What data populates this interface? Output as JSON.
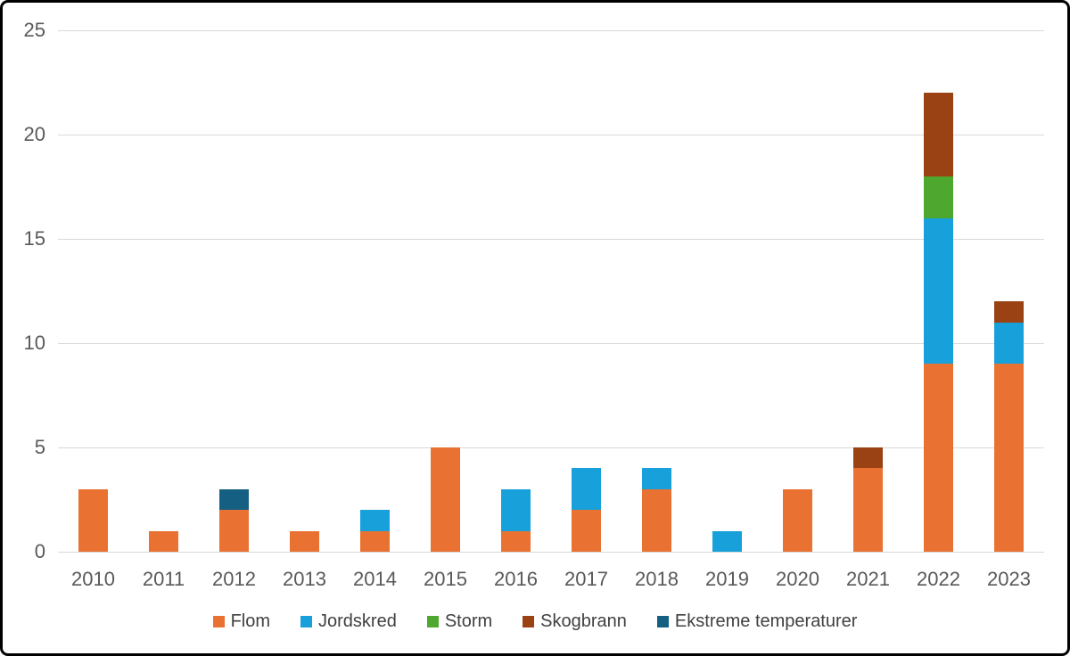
{
  "chart_data": {
    "type": "bar",
    "stacked": true,
    "title": "",
    "xlabel": "",
    "ylabel": "",
    "categories": [
      "2010",
      "2011",
      "2012",
      "2013",
      "2014",
      "2015",
      "2016",
      "2017",
      "2018",
      "2019",
      "2020",
      "2021",
      "2022",
      "2023"
    ],
    "series": [
      {
        "name": "Flom",
        "color": "#E97132",
        "values": [
          3,
          1,
          2,
          1,
          1,
          5,
          1,
          2,
          3,
          0,
          3,
          4,
          9,
          9
        ]
      },
      {
        "name": "Jordskred",
        "color": "#18A0DB",
        "values": [
          0,
          0,
          0,
          0,
          1,
          0,
          2,
          2,
          1,
          1,
          0,
          0,
          7,
          2
        ]
      },
      {
        "name": "Storm",
        "color": "#4EA72E",
        "values": [
          0,
          0,
          0,
          0,
          0,
          0,
          0,
          0,
          0,
          0,
          0,
          0,
          2,
          0
        ]
      },
      {
        "name": "Skogbrann",
        "color": "#9A4214",
        "values": [
          0,
          0,
          0,
          0,
          0,
          0,
          0,
          0,
          0,
          0,
          0,
          1,
          4,
          1
        ]
      },
      {
        "name": "Ekstreme temperaturer",
        "color": "#156082",
        "values": [
          0,
          0,
          1,
          0,
          0,
          0,
          0,
          0,
          0,
          0,
          0,
          0,
          0,
          0
        ]
      }
    ],
    "y_ticks": [
      0,
      5,
      10,
      15,
      20,
      25
    ],
    "ylim": [
      0,
      25
    ],
    "grid": true,
    "legend_position": "bottom",
    "colors": {
      "gridline": "#d9d9d9",
      "axis_label": "#595959",
      "legend_text": "#404040",
      "background": "#ffffff",
      "border": "#000000"
    }
  }
}
